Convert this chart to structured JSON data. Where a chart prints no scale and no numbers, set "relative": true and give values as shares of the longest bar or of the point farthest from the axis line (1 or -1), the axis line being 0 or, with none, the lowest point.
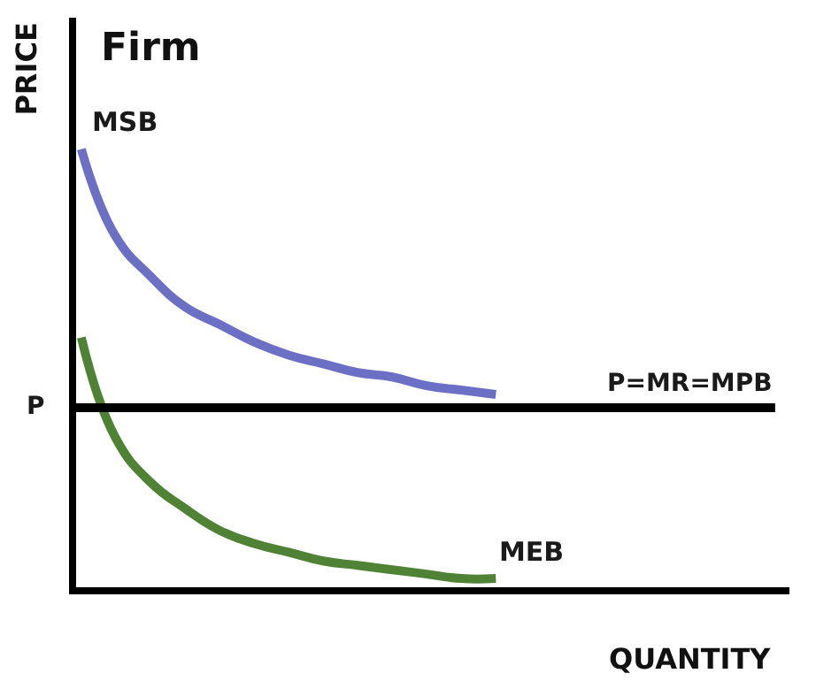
{
  "chart_data": {
    "type": "line",
    "relative": true,
    "title": "Firm",
    "xlabel": "QUANTITY",
    "ylabel": "PRICE",
    "categories": [
      null,
      null,
      null,
      null,
      null,
      null,
      null,
      null,
      null,
      null,
      null,
      null,
      null,
      null,
      null,
      null,
      null,
      null,
      null,
      null,
      null
    ],
    "series": [
      {
        "name": "MSB",
        "color": "#6b70c4",
        "values": [
          1.0,
          0.8,
          0.71,
          0.64,
          0.6,
          0.56,
          0.53,
          0.51,
          0.49,
          0.48,
          0.46,
          0.45,
          0.44,
          null,
          null,
          null,
          null,
          null,
          null,
          null,
          null
        ]
      },
      {
        "name": "MEB",
        "color": "#4f8234",
        "values": [
          0.57,
          0.34,
          0.24,
          0.18,
          0.13,
          0.1,
          0.08,
          0.06,
          0.05,
          0.04,
          0.03,
          0.02,
          0.02,
          null,
          null,
          null,
          null,
          null,
          null,
          null,
          null
        ]
      }
    ],
    "ref_lines": [
      {
        "axis": "y",
        "value": 0.41,
        "label": "P=MR=MPB",
        "color": "#000000"
      }
    ],
    "annotations": [
      "P"
    ],
    "legend": false,
    "marker": "none",
    "line_style": "solid"
  }
}
